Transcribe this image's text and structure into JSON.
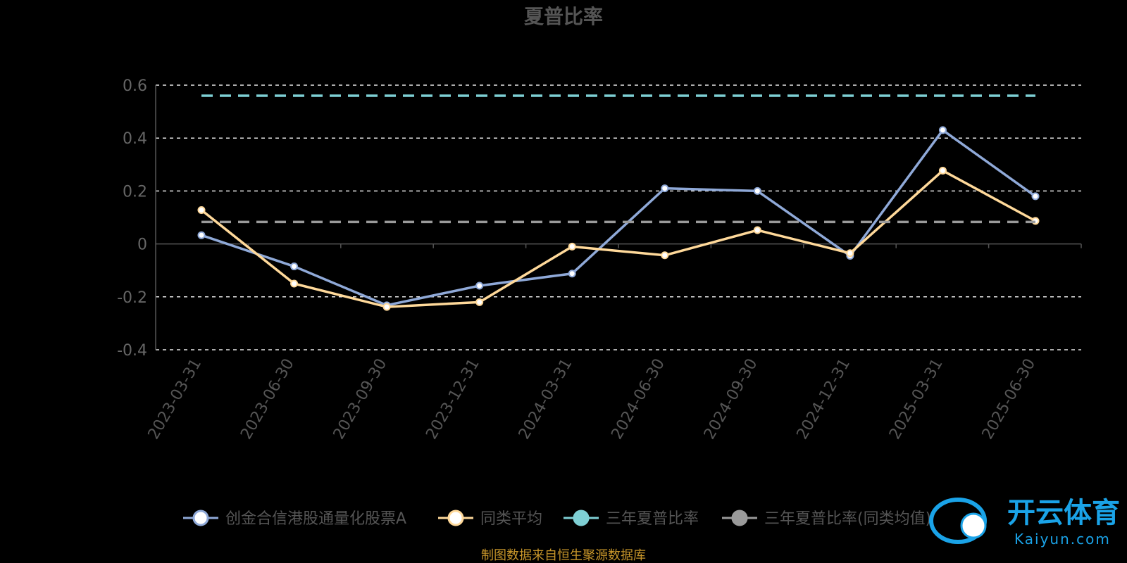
{
  "chart_data": {
    "type": "line",
    "title": "夏普比率",
    "categories": [
      "2023-03-31",
      "2023-06-30",
      "2023-09-30",
      "2023-12-31",
      "2024-03-31",
      "2024-06-30",
      "2024-09-30",
      "2024-12-31",
      "2025-03-31",
      "2025-06-30"
    ],
    "ylim": [
      -0.4,
      0.6
    ],
    "yticks": [
      -0.4,
      -0.2,
      0,
      0.2,
      0.4,
      0.6
    ],
    "ytick_labels": [
      "-0.4",
      "-0.2",
      "0",
      "0.2",
      "0.4",
      "0.6"
    ],
    "grid": true,
    "legend_position": "bottom",
    "series": [
      {
        "name": "创金合信港股通量化股票A",
        "color": "#8fa9d8",
        "marker": "circle",
        "values": [
          0.033,
          -0.085,
          -0.232,
          -0.158,
          -0.112,
          0.21,
          0.2,
          -0.045,
          0.43,
          0.18
        ]
      },
      {
        "name": "同类平均",
        "color": "#ffd99a",
        "marker": "circle",
        "values": [
          0.128,
          -0.15,
          -0.238,
          -0.22,
          -0.01,
          -0.043,
          0.052,
          -0.035,
          0.277,
          0.087
        ]
      },
      {
        "name": "三年夏普比率",
        "color": "#7ecfd4",
        "style": "dashed",
        "values": [
          0.56,
          0.56,
          0.56,
          0.56,
          0.56,
          0.56,
          0.56,
          0.56,
          0.56,
          0.56
        ]
      },
      {
        "name": "三年夏普比率(同类均值)",
        "color": "#9a9a9a",
        "style": "dashed",
        "values": [
          0.083,
          0.083,
          0.083,
          0.083,
          0.083,
          0.083,
          0.083,
          0.083,
          0.083,
          0.083
        ]
      }
    ]
  },
  "footer": "制图数据来自恒生聚源数据库",
  "watermark": {
    "cn": "开云体育",
    "en": "Kaiyun.com"
  }
}
